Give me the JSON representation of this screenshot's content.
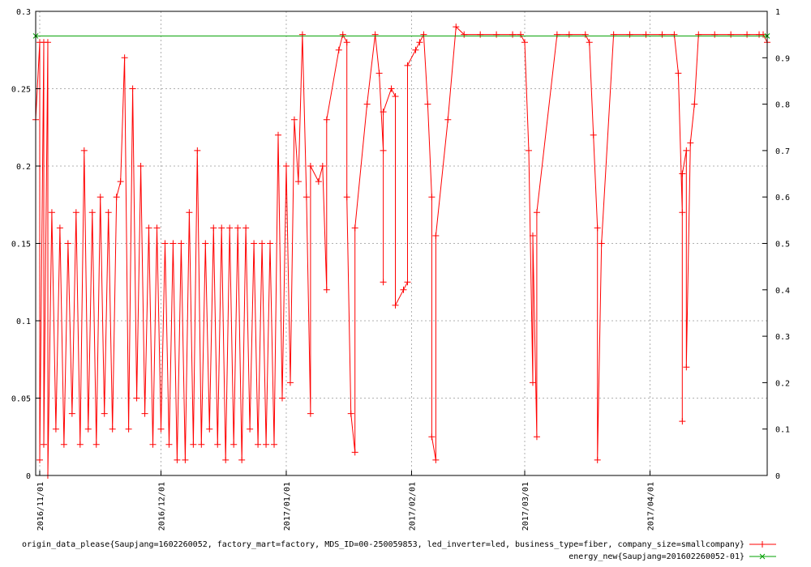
{
  "chart_data": {
    "type": "line",
    "title": "",
    "xlabel": "",
    "ylabel": "",
    "grid": true,
    "legend_position": "bottom-right",
    "x_range": [
      "2016-10-31",
      "2017-04-30"
    ],
    "x_ticks": [
      "2016/11/01",
      "2016/12/01",
      "2017/01/01",
      "2017/02/01",
      "2017/03/01",
      "2017/04/01"
    ],
    "y_left": {
      "range": [
        0,
        0.3
      ],
      "ticks": [
        "0",
        "0.05",
        "0.1",
        "0.15",
        "0.2",
        "0.25",
        "0.3"
      ]
    },
    "y_right": {
      "range": [
        0,
        1
      ],
      "ticks": [
        "0",
        "0.1",
        "0.2",
        "0.3",
        "0.4",
        "0.5",
        "0.6",
        "0.7",
        "0.8",
        "0.9",
        "1"
      ]
    },
    "series": [
      {
        "name": "origin_data_please{Saupjang=1602260052, factory_mart=factory, MDS_ID=00-250059853, led_inverter=led, business_type=fiber, company_size=smallcompany}",
        "axis": "left",
        "color": "#ff0000",
        "marker": "+",
        "points": [
          [
            "2016-10-31",
            0.23
          ],
          [
            "2016-11-01",
            0.28
          ],
          [
            "2016-11-01",
            0.01
          ],
          [
            "2016-11-02",
            0.28
          ],
          [
            "2016-11-02",
            0.02
          ],
          [
            "2016-11-03",
            0.28
          ],
          [
            "2016-11-03",
            0.0
          ],
          [
            "2016-11-04",
            0.17
          ],
          [
            "2016-11-05",
            0.03
          ],
          [
            "2016-11-06",
            0.16
          ],
          [
            "2016-11-07",
            0.02
          ],
          [
            "2016-11-08",
            0.15
          ],
          [
            "2016-11-09",
            0.04
          ],
          [
            "2016-11-10",
            0.17
          ],
          [
            "2016-11-11",
            0.02
          ],
          [
            "2016-11-12",
            0.21
          ],
          [
            "2016-11-13",
            0.03
          ],
          [
            "2016-11-14",
            0.17
          ],
          [
            "2016-11-15",
            0.02
          ],
          [
            "2016-11-16",
            0.18
          ],
          [
            "2016-11-17",
            0.04
          ],
          [
            "2016-11-18",
            0.17
          ],
          [
            "2016-11-19",
            0.03
          ],
          [
            "2016-11-20",
            0.18
          ],
          [
            "2016-11-21",
            0.19
          ],
          [
            "2016-11-22",
            0.27
          ],
          [
            "2016-11-23",
            0.03
          ],
          [
            "2016-11-24",
            0.25
          ],
          [
            "2016-11-25",
            0.05
          ],
          [
            "2016-11-26",
            0.2
          ],
          [
            "2016-11-27",
            0.04
          ],
          [
            "2016-11-28",
            0.16
          ],
          [
            "2016-11-29",
            0.02
          ],
          [
            "2016-11-30",
            0.16
          ],
          [
            "2016-12-01",
            0.03
          ],
          [
            "2016-12-02",
            0.15
          ],
          [
            "2016-12-03",
            0.02
          ],
          [
            "2016-12-04",
            0.15
          ],
          [
            "2016-12-05",
            0.01
          ],
          [
            "2016-12-06",
            0.15
          ],
          [
            "2016-12-07",
            0.01
          ],
          [
            "2016-12-08",
            0.17
          ],
          [
            "2016-12-09",
            0.02
          ],
          [
            "2016-12-10",
            0.21
          ],
          [
            "2016-12-11",
            0.02
          ],
          [
            "2016-12-12",
            0.15
          ],
          [
            "2016-12-13",
            0.03
          ],
          [
            "2016-12-14",
            0.16
          ],
          [
            "2016-12-15",
            0.02
          ],
          [
            "2016-12-16",
            0.16
          ],
          [
            "2016-12-17",
            0.01
          ],
          [
            "2016-12-18",
            0.16
          ],
          [
            "2016-12-19",
            0.02
          ],
          [
            "2016-12-20",
            0.16
          ],
          [
            "2016-12-21",
            0.01
          ],
          [
            "2016-12-22",
            0.16
          ],
          [
            "2016-12-23",
            0.03
          ],
          [
            "2016-12-24",
            0.15
          ],
          [
            "2016-12-25",
            0.02
          ],
          [
            "2016-12-26",
            0.15
          ],
          [
            "2016-12-27",
            0.02
          ],
          [
            "2016-12-28",
            0.15
          ],
          [
            "2016-12-29",
            0.02
          ],
          [
            "2016-12-30",
            0.22
          ],
          [
            "2016-12-31",
            0.05
          ],
          [
            "2017-01-01",
            0.2
          ],
          [
            "2017-01-02",
            0.06
          ],
          [
            "2017-01-03",
            0.23
          ],
          [
            "2017-01-04",
            0.19
          ],
          [
            "2017-01-05",
            0.285
          ],
          [
            "2017-01-06",
            0.18
          ],
          [
            "2017-01-07",
            0.04
          ],
          [
            "2017-01-07",
            0.2
          ],
          [
            "2017-01-09",
            0.19
          ],
          [
            "2017-01-10",
            0.2
          ],
          [
            "2017-01-11",
            0.12
          ],
          [
            "2017-01-11",
            0.23
          ],
          [
            "2017-01-14",
            0.275
          ],
          [
            "2017-01-15",
            0.285
          ],
          [
            "2017-01-16",
            0.28
          ],
          [
            "2017-01-16",
            0.18
          ],
          [
            "2017-01-17",
            0.04
          ],
          [
            "2017-01-18",
            0.015
          ],
          [
            "2017-01-18",
            0.16
          ],
          [
            "2017-01-21",
            0.24
          ],
          [
            "2017-01-23",
            0.285
          ],
          [
            "2017-01-24",
            0.26
          ],
          [
            "2017-01-25",
            0.21
          ],
          [
            "2017-01-25",
            0.125
          ],
          [
            "2017-01-25",
            0.235
          ],
          [
            "2017-01-27",
            0.25
          ],
          [
            "2017-01-28",
            0.245
          ],
          [
            "2017-01-28",
            0.11
          ],
          [
            "2017-01-30",
            0.12
          ],
          [
            "2017-01-31",
            0.125
          ],
          [
            "2017-01-31",
            0.265
          ],
          [
            "2017-02-02",
            0.275
          ],
          [
            "2017-02-03",
            0.28
          ],
          [
            "2017-02-04",
            0.285
          ],
          [
            "2017-02-05",
            0.24
          ],
          [
            "2017-02-06",
            0.18
          ],
          [
            "2017-02-06",
            0.025
          ],
          [
            "2017-02-07",
            0.01
          ],
          [
            "2017-02-07",
            0.155
          ],
          [
            "2017-02-10",
            0.23
          ],
          [
            "2017-02-12",
            0.29
          ],
          [
            "2017-02-14",
            0.285
          ],
          [
            "2017-02-18",
            0.285
          ],
          [
            "2017-02-22",
            0.285
          ],
          [
            "2017-02-26",
            0.285
          ],
          [
            "2017-02-28",
            0.285
          ],
          [
            "2017-03-01",
            0.28
          ],
          [
            "2017-03-02",
            0.21
          ],
          [
            "2017-03-03",
            0.06
          ],
          [
            "2017-03-03",
            0.155
          ],
          [
            "2017-03-04",
            0.025
          ],
          [
            "2017-03-04",
            0.17
          ],
          [
            "2017-03-09",
            0.285
          ],
          [
            "2017-03-12",
            0.285
          ],
          [
            "2017-03-16",
            0.285
          ],
          [
            "2017-03-17",
            0.28
          ],
          [
            "2017-03-18",
            0.22
          ],
          [
            "2017-03-19",
            0.16
          ],
          [
            "2017-03-19",
            0.01
          ],
          [
            "2017-03-20",
            0.15
          ],
          [
            "2017-03-23",
            0.285
          ],
          [
            "2017-03-27",
            0.285
          ],
          [
            "2017-03-31",
            0.285
          ],
          [
            "2017-04-04",
            0.285
          ],
          [
            "2017-04-07",
            0.285
          ],
          [
            "2017-04-08",
            0.26
          ],
          [
            "2017-04-09",
            0.17
          ],
          [
            "2017-04-09",
            0.035
          ],
          [
            "2017-04-09",
            0.195
          ],
          [
            "2017-04-10",
            0.21
          ],
          [
            "2017-04-10",
            0.07
          ],
          [
            "2017-04-11",
            0.215
          ],
          [
            "2017-04-12",
            0.24
          ],
          [
            "2017-04-13",
            0.285
          ],
          [
            "2017-04-17",
            0.285
          ],
          [
            "2017-04-21",
            0.285
          ],
          [
            "2017-04-25",
            0.285
          ],
          [
            "2017-04-28",
            0.285
          ],
          [
            "2017-04-29",
            0.285
          ],
          [
            "2017-04-30",
            0.28
          ]
        ]
      },
      {
        "name": "energy_new{Saupjang=201602260052-01}",
        "axis": "right",
        "color": "#00a000",
        "marker": "x",
        "points": [
          [
            "2016-10-31",
            0.947
          ],
          [
            "2017-04-30",
            0.947
          ]
        ]
      }
    ]
  }
}
